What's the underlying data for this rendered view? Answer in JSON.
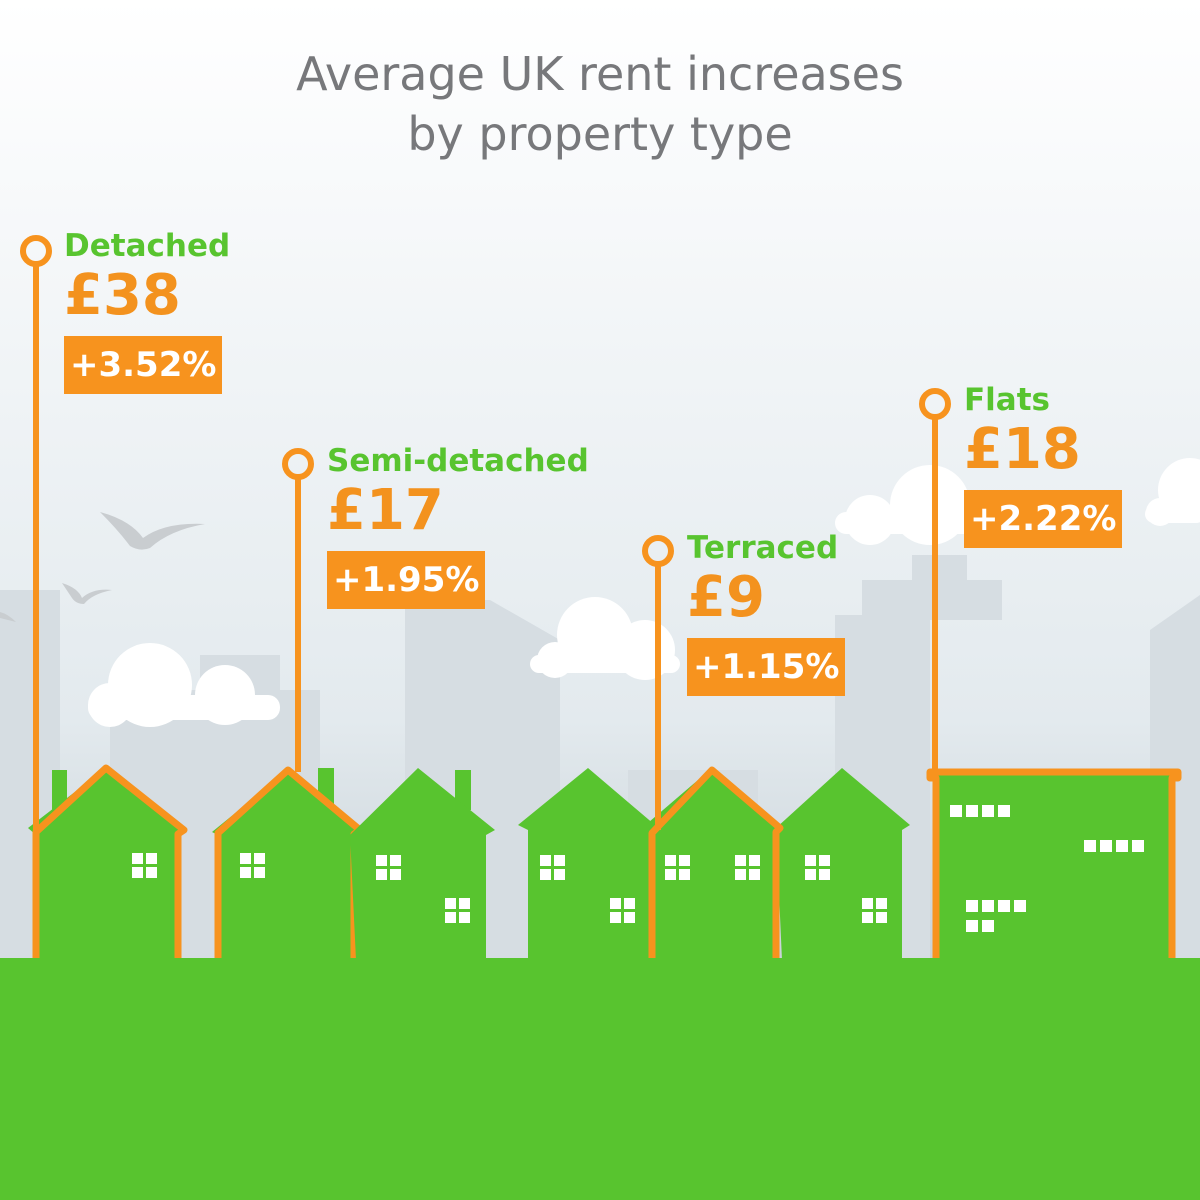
{
  "title": {
    "line1": "Average UK rent increases",
    "line2": "by property type"
  },
  "properties": [
    {
      "name": "Detached",
      "amount": "£38",
      "percent": "+3.52%"
    },
    {
      "name": "Semi-detached",
      "amount": "£17",
      "percent": "+1.95%"
    },
    {
      "name": "Terraced",
      "amount": "£9",
      "percent": "+1.15%"
    },
    {
      "name": "Flats",
      "amount": "£18",
      "percent": "+2.22%"
    }
  ],
  "colors": {
    "house_green": "#58c42f",
    "accent_orange": "#f7931e",
    "title_grey": "#77787b",
    "building_grey": "#d3dbe0"
  }
}
